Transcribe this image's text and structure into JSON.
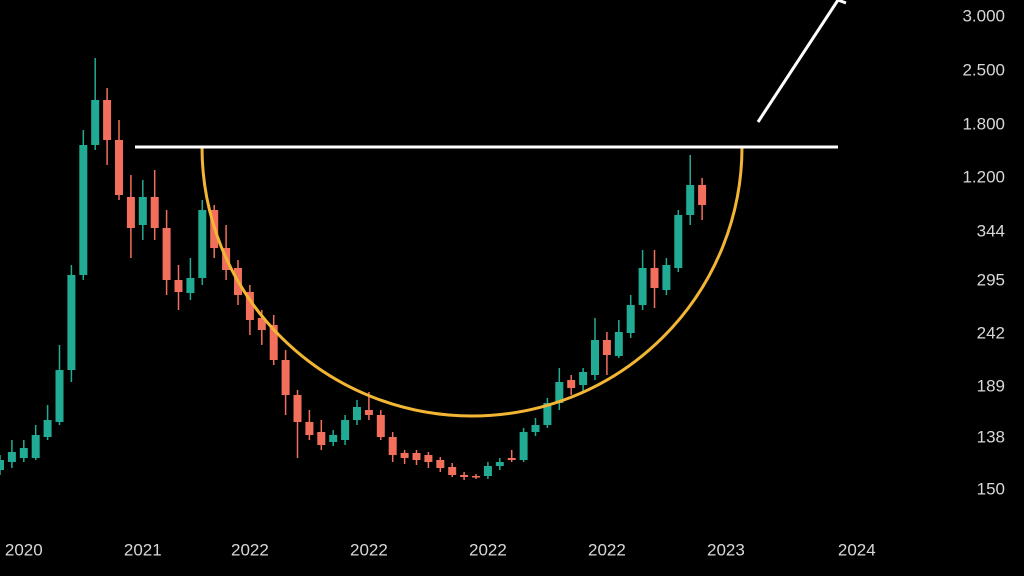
{
  "chart_data": {
    "type": "candlestick",
    "up_color": "#22ab94",
    "down_color": "#f2705b",
    "categories": [
      null,
      null,
      "2020",
      null,
      null,
      null,
      null,
      null,
      null,
      null,
      null,
      null,
      "2021",
      null,
      null,
      null,
      null,
      null,
      null,
      null,
      null,
      "2022",
      null,
      null,
      null,
      null,
      null,
      null,
      null,
      null,
      null,
      "2022",
      null,
      null,
      null,
      null,
      null,
      null,
      null,
      null,
      null,
      "2022",
      null,
      null,
      null,
      null,
      null,
      null,
      null,
      null,
      null,
      "2022",
      null,
      null,
      null,
      null,
      null,
      null,
      null,
      null,
      null,
      "2023",
      null,
      null,
      null,
      null,
      null,
      null,
      null,
      null,
      null,
      null,
      "2024"
    ],
    "open": [
      106,
      114,
      118,
      118,
      139,
      154,
      206,
      301,
      431,
      476,
      436,
      379,
      351,
      379,
      348,
      296,
      283,
      298,
      366,
      328,
      308,
      284,
      258,
      251,
      216,
      181,
      154,
      144,
      134,
      136,
      156,
      166,
      161,
      139,
      123,
      123,
      121,
      116,
      109,
      101,
      100,
      100,
      110,
      118,
      116,
      144,
      151,
      173,
      196,
      191,
      201,
      236,
      220,
      243,
      271,
      308,
      286,
      308,
      361,
      391,
      null,
      null,
      null,
      null,
      null,
      null,
      null,
      null,
      null,
      null,
      null,
      null,
      null
    ],
    "high": [
      121,
      136,
      136,
      151,
      171,
      231,
      311,
      446,
      518,
      488,
      456,
      401,
      396,
      406,
      366,
      311,
      318,
      376,
      371,
      351,
      316,
      291,
      266,
      261,
      226,
      186,
      166,
      156,
      146,
      161,
      176,
      184,
      166,
      144,
      126,
      126,
      124,
      119,
      113,
      104,
      102,
      114,
      118,
      126,
      148,
      158,
      178,
      208,
      201,
      208,
      258,
      244,
      256,
      281,
      326,
      326,
      318,
      366,
      421,
      398,
      null,
      null,
      null,
      null,
      null,
      null,
      null,
      null,
      null,
      null,
      null,
      null,
      null
    ],
    "low": [
      101,
      108,
      114,
      116,
      136,
      151,
      194,
      296,
      426,
      411,
      376,
      318,
      336,
      336,
      281,
      266,
      276,
      291,
      318,
      296,
      271,
      241,
      231,
      211,
      161,
      118,
      136,
      126,
      130,
      131,
      151,
      156,
      136,
      114,
      112,
      111,
      108,
      104,
      99,
      96,
      97,
      97,
      106,
      114,
      114,
      140,
      148,
      166,
      181,
      184,
      196,
      201,
      218,
      238,
      266,
      268,
      281,
      304,
      351,
      356,
      null,
      null,
      null,
      null,
      null,
      null,
      null,
      null,
      null,
      null,
      null,
      null,
      null
    ],
    "close": [
      116,
      124,
      128,
      141,
      156,
      206,
      301,
      431,
      476,
      436,
      381,
      348,
      379,
      348,
      296,
      284,
      298,
      366,
      328,
      306,
      281,
      256,
      246,
      216,
      181,
      154,
      141,
      131,
      141,
      156,
      169,
      161,
      139,
      121,
      118,
      116,
      114,
      108,
      101,
      99,
      99,
      110,
      114,
      116,
      144,
      151,
      173,
      194,
      188,
      204,
      236,
      221,
      244,
      271,
      308,
      288,
      311,
      361,
      391,
      371,
      null,
      null,
      null,
      null,
      null,
      null,
      null,
      null,
      null,
      null,
      null,
      null,
      null
    ],
    "ylim": [
      0,
      576
    ],
    "yticks": [
      {
        "value": 559,
        "label": "3.000"
      },
      {
        "value": 505,
        "label": "2.500"
      },
      {
        "value": 451,
        "label": "1.800"
      },
      {
        "value": 398,
        "label": "1.200"
      },
      344,
      295,
      242,
      189,
      138,
      {
        "value": 86,
        "label": "150"
      }
    ]
  }
}
